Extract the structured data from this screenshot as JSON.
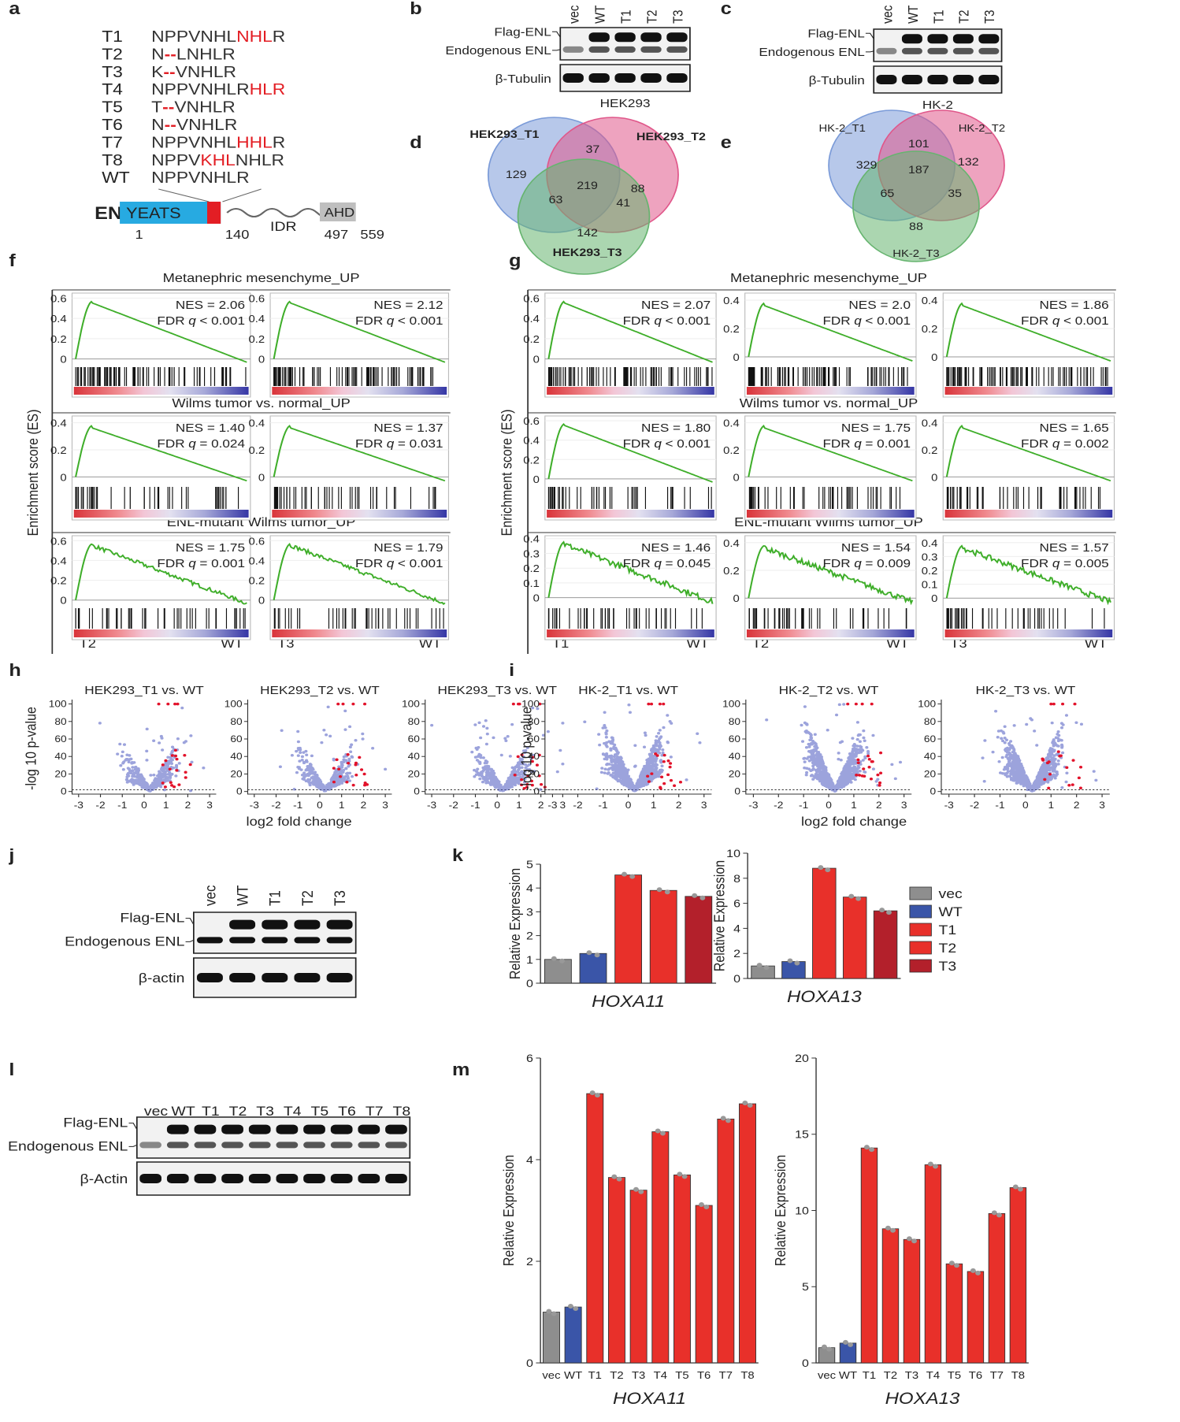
{
  "panel_letters": [
    "a",
    "b",
    "c",
    "d",
    "e",
    "f",
    "g",
    "h",
    "i",
    "j",
    "k",
    "l",
    "m"
  ],
  "sequences": {
    "rows": [
      {
        "name": "T1",
        "parts": [
          {
            "text": "NPPVNHL"
          },
          {
            "text": "NHL",
            "color": "#e31e24"
          },
          {
            "text": "R"
          }
        ]
      },
      {
        "name": "T2",
        "parts": [
          {
            "text": "N"
          },
          {
            "text": "--",
            "color": "#e31e24"
          },
          {
            "text": "LNHLR"
          }
        ]
      },
      {
        "name": "T3",
        "parts": [
          {
            "text": "K"
          },
          {
            "text": "--",
            "color": "#e31e24"
          },
          {
            "text": "VNHLR"
          }
        ]
      },
      {
        "name": "T4",
        "parts": [
          {
            "text": "NPPVNHLR"
          },
          {
            "text": "HLR",
            "color": "#e31e24"
          }
        ]
      },
      {
        "name": "T5",
        "parts": [
          {
            "text": "T"
          },
          {
            "text": "--",
            "color": "#e31e24"
          },
          {
            "text": "VNHLR"
          }
        ]
      },
      {
        "name": "T6",
        "parts": [
          {
            "text": "N"
          },
          {
            "text": "--",
            "color": "#e31e24"
          },
          {
            "text": "VNHLR"
          }
        ]
      },
      {
        "name": "T7",
        "parts": [
          {
            "text": "NPPVNHL"
          },
          {
            "text": "HHL",
            "color": "#e31e24"
          },
          {
            "text": "R"
          }
        ]
      },
      {
        "name": "T8",
        "parts": [
          {
            "text": "NPPV"
          },
          {
            "text": "KHL",
            "color": "#e31e24"
          },
          {
            "text": "NHLR"
          }
        ]
      },
      {
        "name": "WT",
        "parts": [
          {
            "text": "NPPVNHLR"
          }
        ]
      }
    ]
  },
  "domain_map": {
    "protein": "ENL",
    "domains": [
      "YEATS",
      "IDR",
      "AHD"
    ],
    "positions": [
      "1",
      "140",
      "497",
      "559"
    ]
  },
  "blots": [
    {
      "lanes": [
        "vec",
        "WT",
        "T1",
        "T2",
        "T3"
      ],
      "labels": [
        "Flag-ENL",
        "Endogenous ENL",
        "β-Tubulin"
      ],
      "cell_line": "HEK293"
    },
    {
      "lanes": [
        "vec",
        "WT",
        "T1",
        "T2",
        "T3"
      ],
      "labels": [
        "Flag-ENL",
        "Endogenous ENL",
        "β-Tubulin"
      ],
      "cell_line": "HK-2"
    },
    {
      "lanes": [
        "vec",
        "WT",
        "T1",
        "T2",
        "T3"
      ],
      "labels": [
        "Flag-ENL",
        "Endogenous ENL",
        "β-actin"
      ]
    },
    {
      "lanes": [
        "vec",
        "WT",
        "T1",
        "T2",
        "T3",
        "T4",
        "T5",
        "T6",
        "T7",
        "T8"
      ],
      "labels": [
        "Flag-ENL",
        "Endogenous ENL",
        "β-Actin"
      ]
    }
  ],
  "venns": [
    {
      "sets": [
        "HEK293_T1",
        "HEK293_T2",
        "HEK293_T3"
      ],
      "counts": [
        129,
        37,
        88,
        63,
        219,
        41,
        142
      ],
      "colors": [
        "#7b9bd8",
        "#e0578a",
        "#66b46f"
      ]
    },
    {
      "sets": [
        "HK-2_T1",
        "HK-2_T2",
        "HK-2_T3"
      ],
      "counts": [
        329,
        101,
        132,
        65,
        187,
        35,
        88
      ],
      "colors": [
        "#7b9bd8",
        "#e0578a",
        "#66b46f"
      ]
    }
  ],
  "gsea": [
    {
      "ylabel": "Enrichment score (ES)",
      "row_titles": [
        "Metanephric mesenchyme_UP",
        "Wilms tumor vs. normal_UP",
        "ENL-mutant Wilms tumor_UP"
      ],
      "columns": [
        {
          "xlabels": [
            "T2",
            "WT"
          ],
          "plots": [
            {
              "nes": "NES = 2.06",
              "fdr": [
                "FDR",
                "q",
                "< 0.001"
              ],
              "ylim": [
                -0.05,
                0.65
              ],
              "yticks": [
                0,
                0.2,
                0.4,
                0.6
              ]
            },
            {
              "nes": "NES = 1.40",
              "fdr": [
                "FDR",
                "q",
                "= 0.024"
              ],
              "ylim": [
                -0.05,
                0.45
              ],
              "yticks": [
                0,
                0.2,
                0.4
              ]
            },
            {
              "nes": "NES = 1.75",
              "fdr": [
                "FDR",
                "q",
                "= 0.001"
              ],
              "ylim": [
                -0.05,
                0.65
              ],
              "yticks": [
                0,
                0.2,
                0.4,
                0.6
              ]
            }
          ]
        },
        {
          "xlabels": [
            "T3",
            "WT"
          ],
          "plots": [
            {
              "nes": "NES = 2.12",
              "fdr": [
                "FDR",
                "q",
                "< 0.001"
              ],
              "ylim": [
                -0.05,
                0.65
              ],
              "yticks": [
                0,
                0.2,
                0.4,
                0.6
              ]
            },
            {
              "nes": "NES = 1.37",
              "fdr": [
                "FDR",
                "q",
                "= 0.031"
              ],
              "ylim": [
                -0.05,
                0.45
              ],
              "yticks": [
                0,
                0.2,
                0.4
              ]
            },
            {
              "nes": "NES = 1.79",
              "fdr": [
                "FDR",
                "q",
                "< 0.001"
              ],
              "ylim": [
                -0.05,
                0.65
              ],
              "yticks": [
                0,
                0.2,
                0.4,
                0.6
              ]
            }
          ]
        }
      ]
    },
    {
      "ylabel": "Enrichment score (ES)",
      "row_titles": [
        "Metanephric mesenchyme_UP",
        "Wilms tumor vs. normal_UP",
        "ENL-mutant Wilms tumor_UP"
      ],
      "columns": [
        {
          "xlabels": [
            "T1",
            "WT"
          ],
          "plots": [
            {
              "nes": "NES = 2.07",
              "fdr": [
                "FDR",
                "q",
                "< 0.001"
              ],
              "ylim": [
                -0.05,
                0.65
              ],
              "yticks": [
                0,
                0.2,
                0.4,
                0.6
              ]
            },
            {
              "nes": "NES = 1.80",
              "fdr": [
                "FDR",
                "q",
                "< 0.001"
              ],
              "ylim": [
                -0.05,
                0.65
              ],
              "yticks": [
                0,
                0.2,
                0.4,
                0.6
              ]
            },
            {
              "nes": "NES = 1.46",
              "fdr": [
                "FDR",
                "q",
                "= 0.045"
              ],
              "ylim": [
                -0.05,
                0.42
              ],
              "yticks": [
                0,
                0.1,
                0.2,
                0.3,
                0.4
              ]
            }
          ]
        },
        {
          "xlabels": [
            "T2",
            "WT"
          ],
          "plots": [
            {
              "nes": "NES = 2.0",
              "fdr": [
                "FDR",
                "q",
                "< 0.001"
              ],
              "ylim": [
                -0.05,
                0.45
              ],
              "yticks": [
                0,
                0.2,
                0.4
              ]
            },
            {
              "nes": "NES = 1.75",
              "fdr": [
                "FDR",
                "q",
                "= 0.001"
              ],
              "ylim": [
                -0.05,
                0.45
              ],
              "yticks": [
                0,
                0.2,
                0.4
              ]
            },
            {
              "nes": "NES = 1.54",
              "fdr": [
                "FDR",
                "q",
                "= 0.009"
              ],
              "ylim": [
                -0.05,
                0.45
              ],
              "yticks": [
                0,
                0.2,
                0.4
              ]
            }
          ]
        },
        {
          "xlabels": [
            "T3",
            "WT"
          ],
          "plots": [
            {
              "nes": "NES = 1.86",
              "fdr": [
                "FDR",
                "q",
                "< 0.001"
              ],
              "ylim": [
                -0.05,
                0.45
              ],
              "yticks": [
                0,
                0.2,
                0.4
              ]
            },
            {
              "nes": "NES = 1.65",
              "fdr": [
                "FDR",
                "q",
                "= 0.002"
              ],
              "ylim": [
                -0.05,
                0.45
              ],
              "yticks": [
                0,
                0.2,
                0.4
              ]
            },
            {
              "nes": "NES = 1.57",
              "fdr": [
                "FDR",
                "q",
                "= 0.005"
              ],
              "ylim": [
                -0.05,
                0.45
              ],
              "yticks": [
                0,
                0.1,
                0.2,
                0.3,
                0.4
              ]
            }
          ]
        }
      ]
    }
  ],
  "volcanoes": [
    {
      "ylabel": "-log 10 p-value",
      "xlabel": "log2 fold change",
      "xlim": [
        -3.3,
        3.3
      ],
      "xticks": [
        -3,
        -2,
        -1,
        0,
        1,
        2,
        3
      ],
      "ylim": [
        -3,
        105
      ],
      "yticks": [
        0,
        20,
        40,
        60,
        80,
        100
      ],
      "titles": [
        "HEK293_T1 vs. WT",
        "HEK293_T2 vs. WT",
        "HEK293_T3 vs. WT"
      ]
    },
    {
      "ylabel": "-log 10 p-value",
      "xlabel": "log2 fold change",
      "xlim": [
        -3.3,
        3.3
      ],
      "xticks": [
        -3,
        -2,
        -1,
        0,
        1,
        2,
        3
      ],
      "ylim": [
        -3,
        105
      ],
      "yticks": [
        0,
        20,
        40,
        60,
        80,
        100
      ],
      "titles": [
        "HK-2_T1 vs. WT",
        "HK-2_T2 vs. WT",
        "HK-2_T3 vs. WT"
      ]
    }
  ],
  "bar_panels": [
    {
      "ylabel": "Relative Expression",
      "legend": {
        "names": [
          "vec",
          "WT",
          "T1",
          "T2",
          "T3"
        ],
        "colors": [
          "#8e8e8e",
          "#3a55a8",
          "#e8302a",
          "#e8302a",
          "#b3202b"
        ]
      },
      "charts": [
        {
          "gene": "HOXA11",
          "values": [
            1.0,
            1.25,
            4.55,
            3.9,
            3.65
          ],
          "colors": [
            "#8e8e8e",
            "#3a55a8",
            "#e8302a",
            "#e8302a",
            "#b3202b"
          ],
          "ylim": [
            0,
            5
          ],
          "yticks": [
            0,
            1,
            2,
            3,
            4,
            5
          ]
        },
        {
          "gene": "HOXA13",
          "values": [
            1.0,
            1.35,
            8.8,
            6.5,
            5.4
          ],
          "colors": [
            "#8e8e8e",
            "#3a55a8",
            "#e8302a",
            "#e8302a",
            "#b3202b"
          ],
          "ylim": [
            0,
            10
          ],
          "yticks": [
            0,
            2,
            4,
            6,
            8,
            10
          ]
        }
      ]
    },
    {
      "ylabel": "Relative Expression",
      "charts": [
        {
          "gene": "HOXA11",
          "categories": [
            "vec",
            "WT",
            "T1",
            "T2",
            "T3",
            "T4",
            "T5",
            "T6",
            "T7",
            "T8"
          ],
          "values": [
            1.0,
            1.1,
            5.3,
            3.65,
            3.4,
            4.55,
            3.7,
            3.1,
            4.8,
            5.1
          ],
          "colors": [
            "#8e8e8e",
            "#3a55a8",
            "#e8302a",
            "#e8302a",
            "#e8302a",
            "#e8302a",
            "#e8302a",
            "#e8302a",
            "#e8302a",
            "#e8302a"
          ],
          "ylim": [
            0,
            6
          ],
          "yticks": [
            0,
            2,
            4,
            6
          ]
        },
        {
          "gene": "HOXA13",
          "categories": [
            "vec",
            "WT",
            "T1",
            "T2",
            "T3",
            "T4",
            "T5",
            "T6",
            "T7",
            "T8"
          ],
          "values": [
            1.0,
            1.3,
            14.1,
            8.8,
            8.1,
            13.0,
            6.5,
            6.0,
            9.8,
            11.5
          ],
          "colors": [
            "#8e8e8e",
            "#3a55a8",
            "#e8302a",
            "#e8302a",
            "#e8302a",
            "#e8302a",
            "#e8302a",
            "#e8302a",
            "#e8302a",
            "#e8302a"
          ],
          "ylim": [
            0,
            20
          ],
          "yticks": [
            0,
            5,
            10,
            15,
            20
          ]
        }
      ]
    }
  ]
}
